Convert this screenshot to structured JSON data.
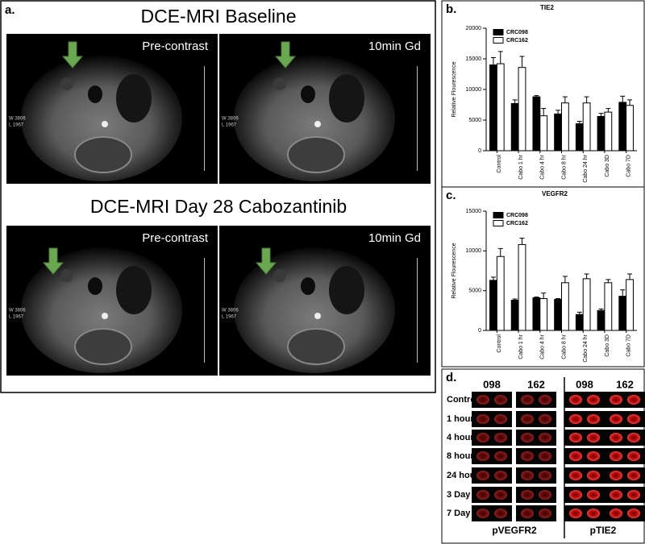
{
  "panel_labels": [
    "a.",
    "b.",
    "c.",
    "d."
  ],
  "mri": {
    "rows": [
      {
        "title": "DCE-MRI Baseline",
        "images": [
          {
            "label": "Pre-contrast",
            "window": "W 3806",
            "level": "L 1967"
          },
          {
            "label": "10min Gd",
            "window": "W 3806",
            "level": "L 1967"
          }
        ]
      },
      {
        "title": "DCE-MRI Day 28 Cabozantinib",
        "images": [
          {
            "label": "Pre-contrast",
            "window": "W 3806",
            "level": "L 1967"
          },
          {
            "label": "10min Gd",
            "window": "W 3806",
            "level": "L 1967"
          }
        ]
      }
    ]
  },
  "chart_data": [
    {
      "type": "bar",
      "title": "TIE2",
      "y_label": "Relative Flourescence",
      "categories": [
        "Control",
        "Cabo 1 hr",
        "Cabo 4 hr",
        "Cabo 8 hr",
        "Cabo 24 hr",
        "Cabo 3D",
        "Cabo 7D"
      ],
      "series": [
        {
          "name": "CRC098",
          "color": "#000000",
          "values": [
            14000,
            7700,
            8800,
            6000,
            4400,
            5600,
            7900
          ],
          "errors": [
            1200,
            600,
            200,
            600,
            400,
            500,
            1000
          ]
        },
        {
          "name": "CRC162",
          "color": "#ffffff",
          "values": [
            14200,
            13600,
            5700,
            7800,
            7800,
            6300,
            7400
          ],
          "errors": [
            2000,
            1800,
            1200,
            1000,
            1000,
            600,
            900
          ]
        }
      ],
      "ylim": [
        0,
        20000
      ],
      "yticks": [
        0,
        5000,
        10000,
        15000,
        20000
      ],
      "legend": "upper-left"
    },
    {
      "type": "bar",
      "title": "VEGFR2",
      "y_label": "Relative Flourescence",
      "categories": [
        "Control",
        "Cabo 1 hr",
        "Cabo 4 hr",
        "Cabo 8 hr",
        "Cabo 24 hr",
        "Cabo 3D",
        "Cabo 7D"
      ],
      "series": [
        {
          "name": "CRC098",
          "color": "#000000",
          "values": [
            6300,
            3800,
            4100,
            3900,
            2000,
            2500,
            4300
          ],
          "errors": [
            400,
            150,
            100,
            100,
            300,
            200,
            800
          ]
        },
        {
          "name": "CRC162",
          "color": "#ffffff",
          "values": [
            9300,
            10800,
            4000,
            6000,
            6500,
            6000,
            6400
          ],
          "errors": [
            1000,
            800,
            700,
            800,
            600,
            400,
            700
          ]
        }
      ],
      "ylim": [
        0,
        15000
      ],
      "yticks": [
        0,
        5000,
        10000,
        15000
      ],
      "legend": "upper-left"
    }
  ],
  "blot": {
    "columns": [
      "098",
      "162",
      "098",
      "162"
    ],
    "rows": [
      "Control",
      "1 hour",
      "4 hour",
      "8 hour",
      "24 hour",
      "3 Day",
      "7 Day"
    ],
    "groups": [
      "pVEGFR2",
      "pTIE2"
    ]
  }
}
